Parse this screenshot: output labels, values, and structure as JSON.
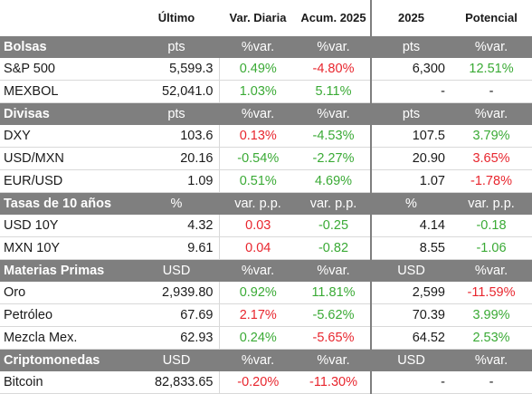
{
  "headers": {
    "c0": "",
    "c1": "Último",
    "c2": "Var. Diaria",
    "c3": "Acum. 2025",
    "c4": "2025",
    "c5": "Potencial"
  },
  "sections": [
    {
      "title": "Bolsas",
      "units": [
        "pts",
        "%var.",
        "%var.",
        "pts",
        "%var."
      ],
      "rows": [
        {
          "name": "S&P 500",
          "last": "5,599.3",
          "daily": "0.49%",
          "daily_sign": "pos",
          "ytd": "-4.80%",
          "ytd_sign": "neg",
          "forecast": "6,300",
          "potential": "12.51%",
          "potential_sign": "pos"
        },
        {
          "name": "MEXBOL",
          "last": "52,041.0",
          "daily": "1.03%",
          "daily_sign": "pos",
          "ytd": "5.11%",
          "ytd_sign": "pos",
          "forecast": "-",
          "potential": "-",
          "potential_sign": "neu"
        }
      ]
    },
    {
      "title": "Divisas",
      "units": [
        "pts",
        "%var.",
        "%var.",
        "pts",
        "%var."
      ],
      "rows": [
        {
          "name": "DXY",
          "last": "103.6",
          "daily": "0.13%",
          "daily_sign": "neg",
          "ytd": "-4.53%",
          "ytd_sign": "pos",
          "forecast": "107.5",
          "potential": "3.79%",
          "potential_sign": "pos"
        },
        {
          "name": "USD/MXN",
          "last": "20.16",
          "daily": "-0.54%",
          "daily_sign": "pos",
          "ytd": "-2.27%",
          "ytd_sign": "pos",
          "forecast": "20.90",
          "potential": "3.65%",
          "potential_sign": "neg"
        },
        {
          "name": "EUR/USD",
          "last": "1.09",
          "daily": "0.51%",
          "daily_sign": "pos",
          "ytd": "4.69%",
          "ytd_sign": "pos",
          "forecast": "1.07",
          "potential": "-1.78%",
          "potential_sign": "neg"
        }
      ]
    },
    {
      "title": "Tasas de 10 años",
      "units": [
        "%",
        "var. p.p.",
        "var. p.p.",
        "%",
        "var. p.p."
      ],
      "rows": [
        {
          "name": "USD 10Y",
          "last": "4.32",
          "daily": "0.03",
          "daily_sign": "neg",
          "ytd": "-0.25",
          "ytd_sign": "pos",
          "forecast": "4.14",
          "potential": "-0.18",
          "potential_sign": "pos"
        },
        {
          "name": "MXN 10Y",
          "last": "9.61",
          "daily": "0.04",
          "daily_sign": "neg",
          "ytd": "-0.82",
          "ytd_sign": "pos",
          "forecast": "8.55",
          "potential": "-1.06",
          "potential_sign": "pos"
        }
      ]
    },
    {
      "title": "Materias Primas",
      "units": [
        "USD",
        "%var.",
        "%var.",
        "USD",
        "%var."
      ],
      "rows": [
        {
          "name": "Oro",
          "last": "2,939.80",
          "daily": "0.92%",
          "daily_sign": "pos",
          "ytd": "11.81%",
          "ytd_sign": "pos",
          "forecast": "2,599",
          "potential": "-11.59%",
          "potential_sign": "neg"
        },
        {
          "name": "Petróleo",
          "last": "67.69",
          "daily": "2.17%",
          "daily_sign": "neg",
          "ytd": "-5.62%",
          "ytd_sign": "pos",
          "forecast": "70.39",
          "potential": "3.99%",
          "potential_sign": "pos"
        },
        {
          "name": "Mezcla Mex.",
          "last": "62.93",
          "daily": "0.24%",
          "daily_sign": "pos",
          "ytd": "-5.65%",
          "ytd_sign": "neg",
          "forecast": "64.52",
          "potential": "2.53%",
          "potential_sign": "pos"
        }
      ]
    },
    {
      "title": "Criptomonedas",
      "units": [
        "USD",
        "%var.",
        "%var.",
        "USD",
        "%var."
      ],
      "rows": [
        {
          "name": "Bitcoin",
          "last": "82,833.65",
          "daily": "-0.20%",
          "daily_sign": "neg",
          "ytd": "-11.30%",
          "ytd_sign": "neg",
          "forecast": "-",
          "potential": "-",
          "potential_sign": "neu"
        }
      ]
    }
  ]
}
